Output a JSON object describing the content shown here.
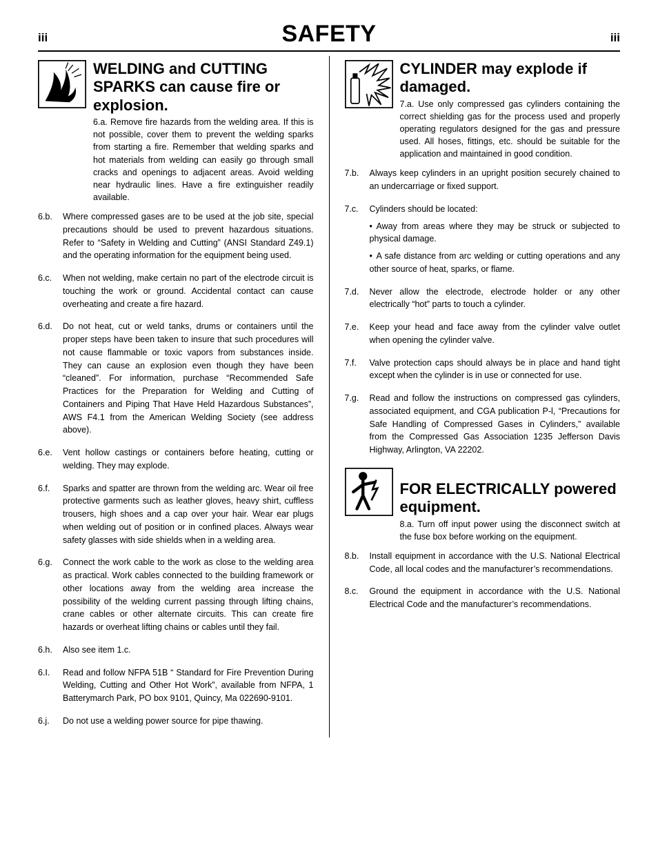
{
  "page": {
    "marker_left": "iii",
    "marker_right": "iii",
    "title": "SAFETY"
  },
  "left": {
    "title": "WELDING and CUTTING SPARKS can cause fire or explosion.",
    "lead_label": "6.a.",
    "lead_text": "Remove fire hazards from the welding area. If this is not possible, cover them to prevent the welding sparks from starting a fire. Remember that welding sparks and hot materials from welding can easily go through small cracks and openings to adjacent areas. Avoid welding near hydraulic lines. Have a fire extinguisher readily available.",
    "items": [
      {
        "label": "6.b.",
        "text": "Where compressed gases are to be used at the job site, special precautions should be used to prevent hazardous situations. Refer to “Safety in Welding and Cutting” (ANSI Standard Z49.1) and the operating information for the equipment being used."
      },
      {
        "label": "6.c.",
        "text": "When not welding, make certain no part of the electrode circuit is touching the work or ground. Accidental contact can cause overheating and create a fire hazard."
      },
      {
        "label": "6.d.",
        "text": "Do not heat, cut or weld tanks, drums or containers until the proper steps have been taken to insure that such procedures will not cause flammable or toxic vapors from substances inside. They can cause an explosion even though they have been “cleaned”. For information, purchase “Recommended Safe Practices for the Preparation for Welding and Cutting of Containers and Piping That Have Held Hazardous Substances”, AWS F4.1 from the American Welding Society (see address above)."
      },
      {
        "label": "6.e.",
        "text": "Vent hollow castings or containers before heating, cutting or welding. They may explode."
      },
      {
        "label": "6.f.",
        "text": "Sparks and spatter are thrown from the welding arc. Wear oil free protective garments such as leather gloves, heavy shirt, cuffless trousers, high shoes and a cap over your hair. Wear ear plugs when welding out of position or in confined places. Always wear safety glasses with side shields when in a welding area."
      },
      {
        "label": "6.g.",
        "text": "Connect the work cable to the work as close to the welding area as practical. Work cables connected to the building framework or other locations away from the welding area increase the possibility of the welding current passing through lifting chains, crane cables or other alternate circuits. This can create fire hazards or overheat lifting chains or cables until they fail."
      },
      {
        "label": "6.h.",
        "text": "Also see item 1.c."
      },
      {
        "label": "6.I.",
        "text": "Read and follow NFPA 51B “ Standard for Fire Prevention During Welding, Cutting and Other Hot Work”, available from NFPA, 1 Batterymarch Park, PO box 9101, Quincy, Ma 022690-9101."
      },
      {
        "label": "6.j.",
        "text": "Do not use a welding power source for pipe thawing."
      }
    ]
  },
  "right": {
    "cyl_title": "CYLINDER may explode if damaged.",
    "cyl_lead_label": "7.a.",
    "cyl_lead_text": "Use only compressed gas cylinders containing the correct shielding gas for the process used and properly operating regulators designed for the gas and pressure used. All hoses, fittings, etc. should be suitable for the application and maintained in good condition.",
    "cyl_items": [
      {
        "label": "7.b.",
        "text": "Always keep cylinders in an upright position securely chained to an undercarriage or fixed support."
      },
      {
        "label": "7.c.",
        "text": "Cylinders should be located:",
        "subs": [
          "Away from areas where they may be struck or subjected to physical damage.",
          "A safe distance from arc welding or cutting operations and any other source of heat, sparks, or flame."
        ]
      },
      {
        "label": "7.d.",
        "text": "Never allow the electrode, electrode holder or any other electrically “hot” parts to touch a cylinder."
      },
      {
        "label": "7.e.",
        "text": "Keep your head and face away from the cylinder valve outlet when opening the cylinder valve."
      },
      {
        "label": "7.f.",
        "text": "Valve protection caps should always be in place and hand tight except when the cylinder is in use or connected for use."
      },
      {
        "label": "7.g.",
        "text": "Read and follow the instructions on compressed gas cylinders, associated equipment, and CGA publication P-l, “Precautions for Safe Handling of Compressed Gases in Cylinders,” available from the Compressed Gas Association 1235 Jefferson Davis Highway, Arlington, VA 22202."
      }
    ],
    "elec_title": "FOR ELECTRICALLY powered equipment.",
    "elec_lead_label": "8.a.",
    "elec_lead_text": "Turn off input power using the disconnect switch at the fuse box before working on the equipment.",
    "elec_items": [
      {
        "label": "8.b.",
        "text": "Install equipment in accordance with the U.S. National Electrical Code, all local codes and the manufacturer’s recommendations."
      },
      {
        "label": "8.c.",
        "text": "Ground the equipment in accordance with the U.S. National Electrical Code and the manufacturer’s recommendations."
      }
    ]
  }
}
